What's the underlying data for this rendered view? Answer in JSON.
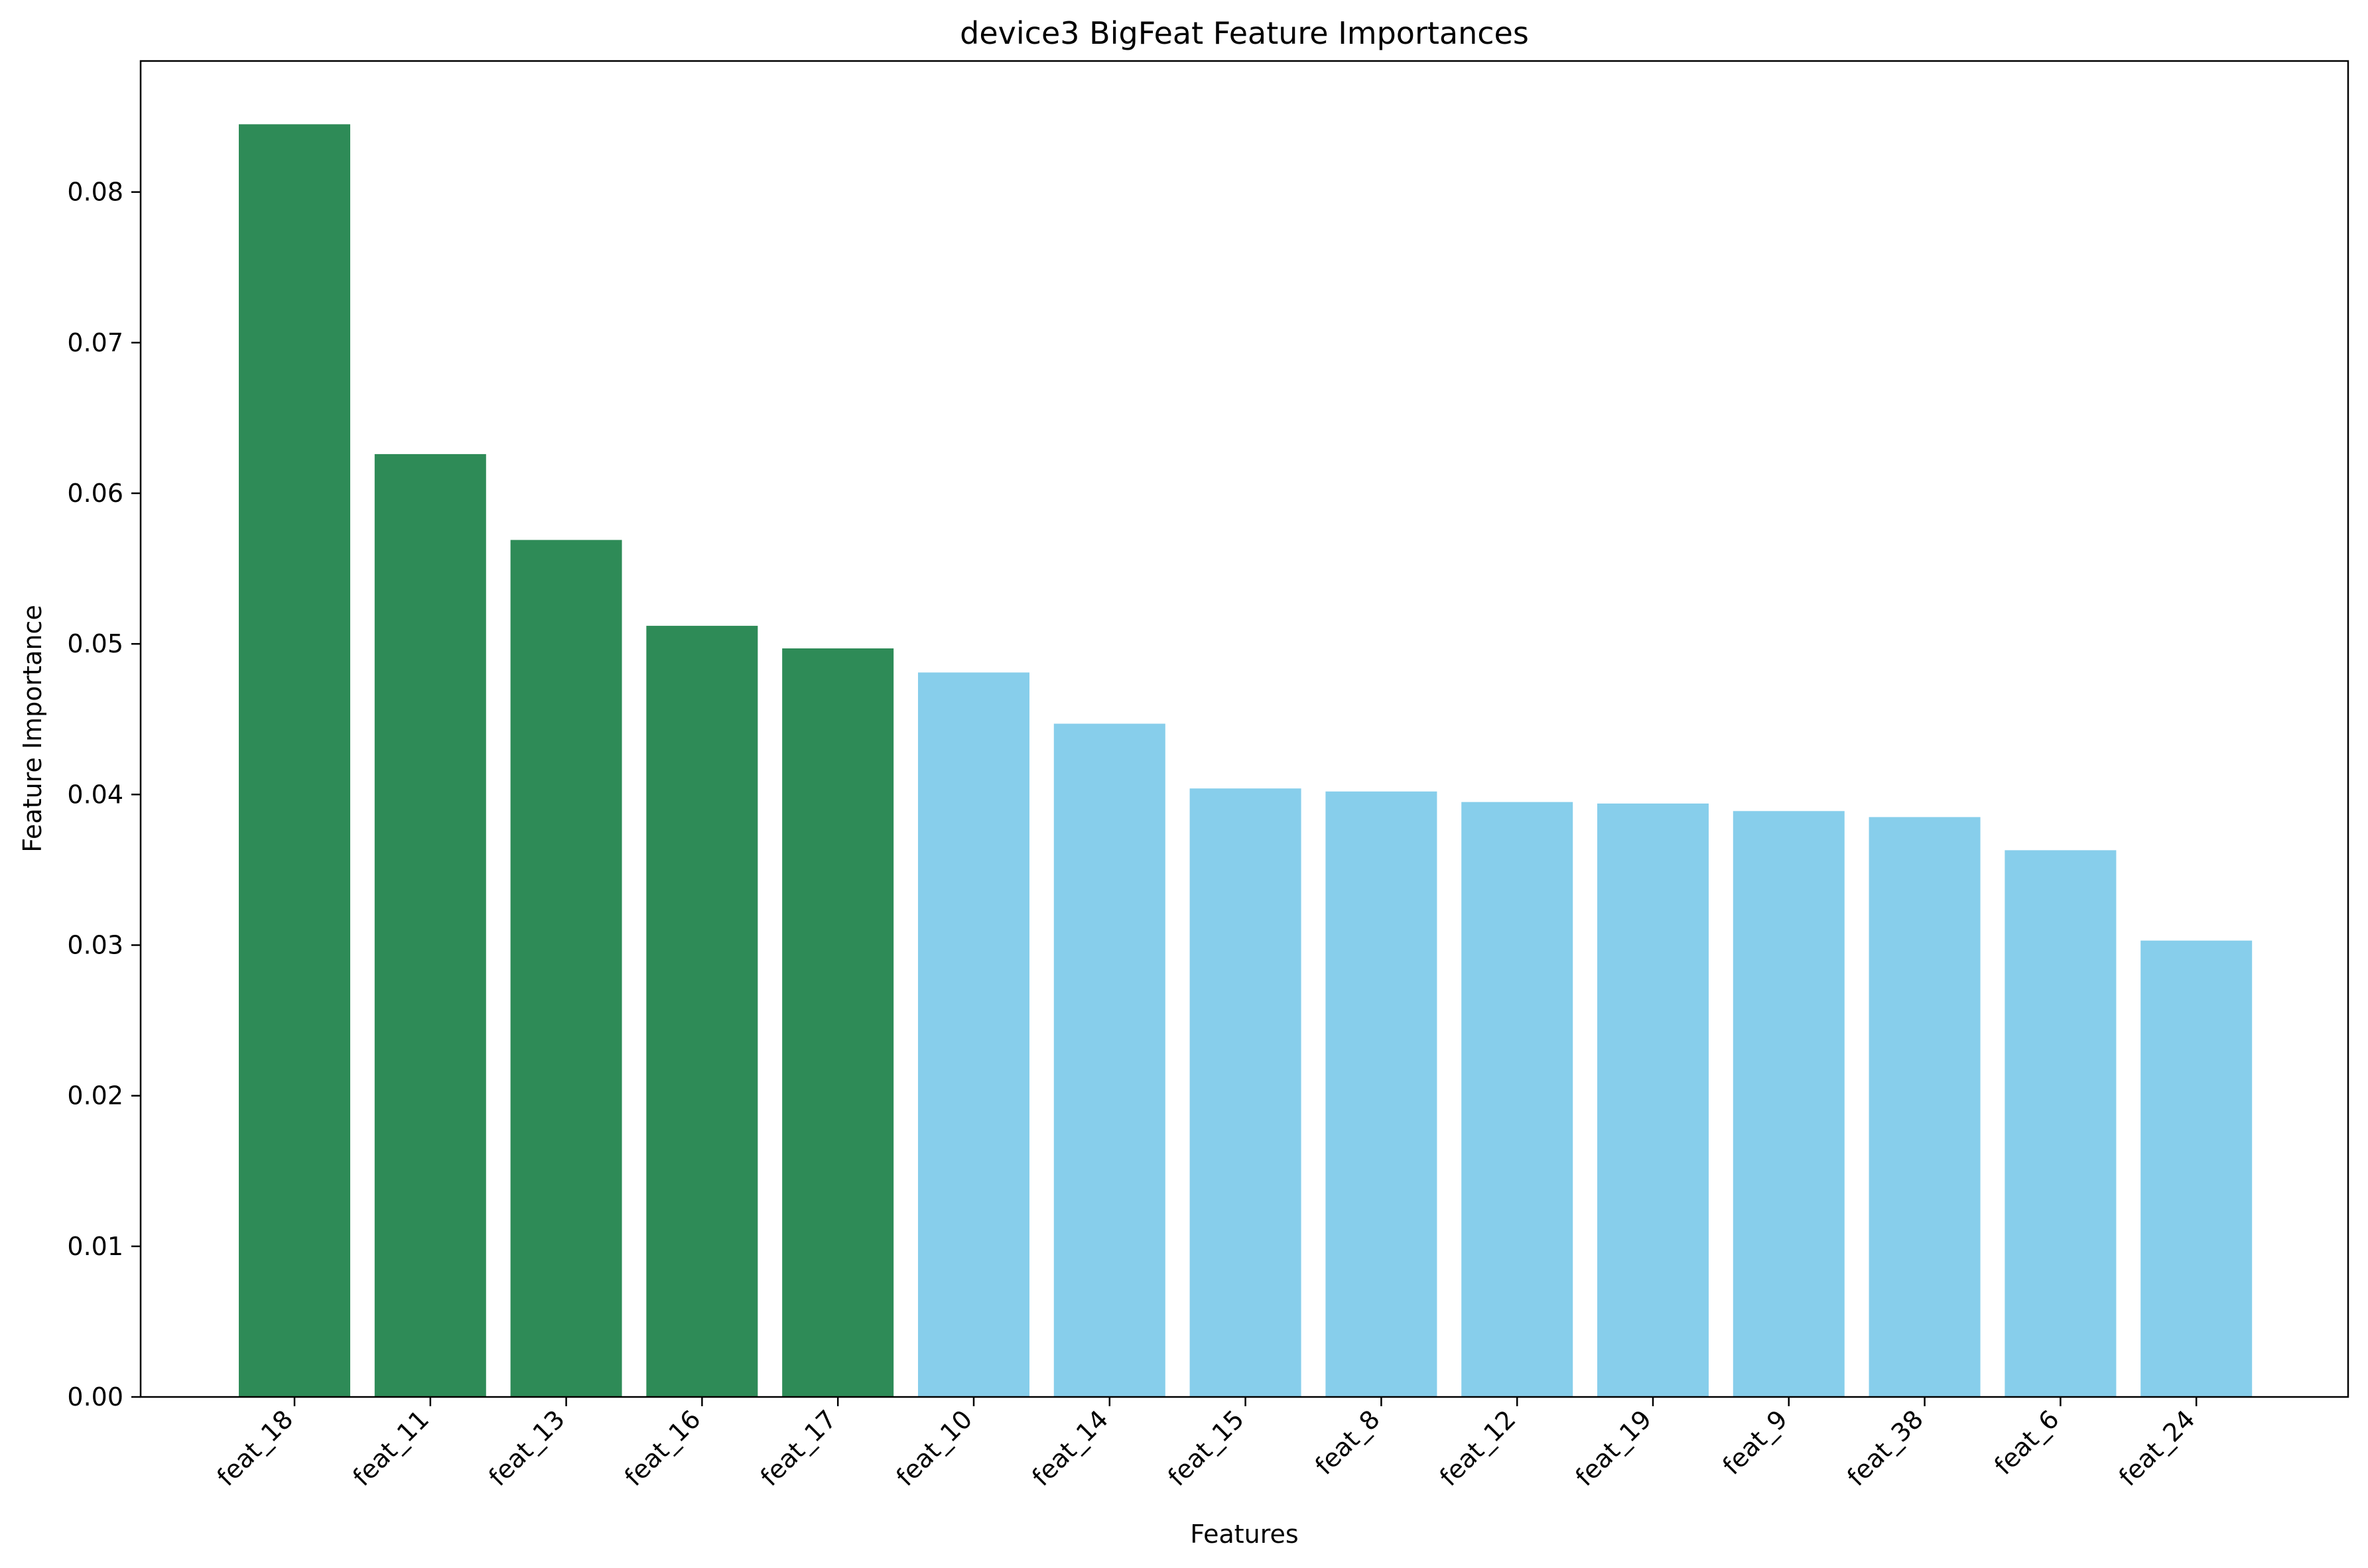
{
  "chart_data": {
    "type": "bar",
    "title": "device3 BigFeat Feature Importances",
    "xlabel": "Features",
    "ylabel": "Feature Importance",
    "categories": [
      "feat_18",
      "feat_11",
      "feat_13",
      "feat_16",
      "feat_17",
      "feat_10",
      "feat_14",
      "feat_15",
      "feat_8",
      "feat_12",
      "feat_19",
      "feat_9",
      "feat_38",
      "feat_6",
      "feat_24"
    ],
    "values": [
      0.0845,
      0.0626,
      0.0569,
      0.0512,
      0.0497,
      0.0481,
      0.0447,
      0.0404,
      0.0402,
      0.0395,
      0.0394,
      0.0389,
      0.0385,
      0.0363,
      0.0303
    ],
    "bar_colors": [
      "#2e8b57",
      "#2e8b57",
      "#2e8b57",
      "#2e8b57",
      "#2e8b57",
      "#87ceeb",
      "#87ceeb",
      "#87ceeb",
      "#87ceeb",
      "#87ceeb",
      "#87ceeb",
      "#87ceeb",
      "#87ceeb",
      "#87ceeb",
      "#87ceeb"
    ],
    "yticks": [
      "0.00",
      "0.01",
      "0.02",
      "0.03",
      "0.04",
      "0.05",
      "0.06",
      "0.07",
      "0.08"
    ],
    "ylim": [
      0,
      0.0887
    ],
    "grid": false,
    "legend": "none",
    "x_tick_rotation": -45
  }
}
